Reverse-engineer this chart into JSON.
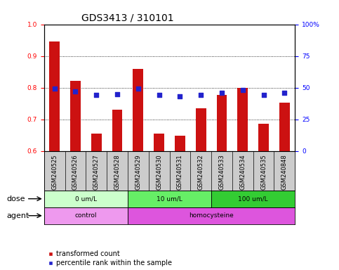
{
  "title": "GDS3413 / 310101",
  "samples": [
    "GSM240525",
    "GSM240526",
    "GSM240527",
    "GSM240528",
    "GSM240529",
    "GSM240530",
    "GSM240531",
    "GSM240532",
    "GSM240533",
    "GSM240534",
    "GSM240535",
    "GSM240848"
  ],
  "red_values": [
    0.945,
    0.822,
    0.655,
    0.73,
    0.86,
    0.655,
    0.648,
    0.735,
    0.778,
    0.8,
    0.685,
    0.752
  ],
  "blue_pct": [
    49,
    47,
    44,
    45,
    49,
    44,
    43,
    44,
    46,
    48,
    44,
    46
  ],
  "ylim_left": [
    0.6,
    1.0
  ],
  "ylim_right": [
    0,
    100
  ],
  "yticks_left": [
    0.6,
    0.7,
    0.8,
    0.9,
    1.0
  ],
  "yticks_right": [
    0,
    25,
    50,
    75,
    100
  ],
  "ytick_labels_right": [
    "0",
    "25",
    "50",
    "75",
    "100%"
  ],
  "dose_groups": [
    {
      "label": "0 um/L",
      "start": 0,
      "end": 4,
      "color": "#ccffcc"
    },
    {
      "label": "10 um/L",
      "start": 4,
      "end": 8,
      "color": "#66ee66"
    },
    {
      "label": "100 um/L",
      "start": 8,
      "end": 12,
      "color": "#33cc33"
    }
  ],
  "agent_groups": [
    {
      "label": "control",
      "start": 0,
      "end": 4,
      "color": "#ee99ee"
    },
    {
      "label": "homocysteine",
      "start": 4,
      "end": 12,
      "color": "#dd55dd"
    }
  ],
  "dose_label": "dose",
  "agent_label": "agent",
  "legend_red": "transformed count",
  "legend_blue": "percentile rank within the sample",
  "bar_color": "#cc1111",
  "dot_color": "#2222cc",
  "sample_bg_color": "#cccccc",
  "plot_bg_color": "#ffffff",
  "grid_color": "#000000",
  "title_fontsize": 10,
  "tick_fontsize": 6.5,
  "sample_fontsize": 6,
  "label_fontsize": 8,
  "legend_fontsize": 7
}
